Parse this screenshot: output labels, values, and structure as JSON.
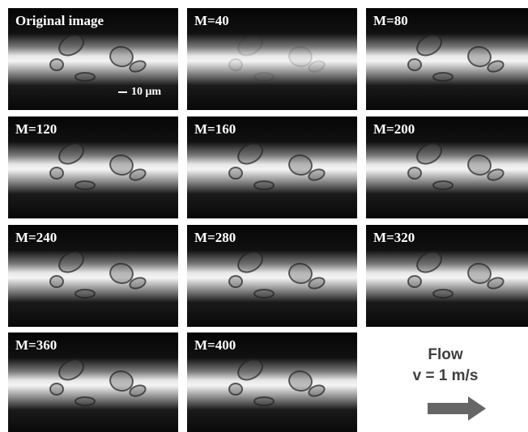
{
  "panels": [
    {
      "label": "Original image"
    },
    {
      "label": "M=40"
    },
    {
      "label": "M=80"
    },
    {
      "label": "M=120"
    },
    {
      "label": "M=160"
    },
    {
      "label": "M=200"
    },
    {
      "label": "M=240"
    },
    {
      "label": "M=280"
    },
    {
      "label": "M=320"
    },
    {
      "label": "M=360"
    },
    {
      "label": "M=400"
    }
  ],
  "scale_bar": "10 μm",
  "flow": {
    "title": "Flow",
    "velocity": "v = 1 m/s"
  }
}
